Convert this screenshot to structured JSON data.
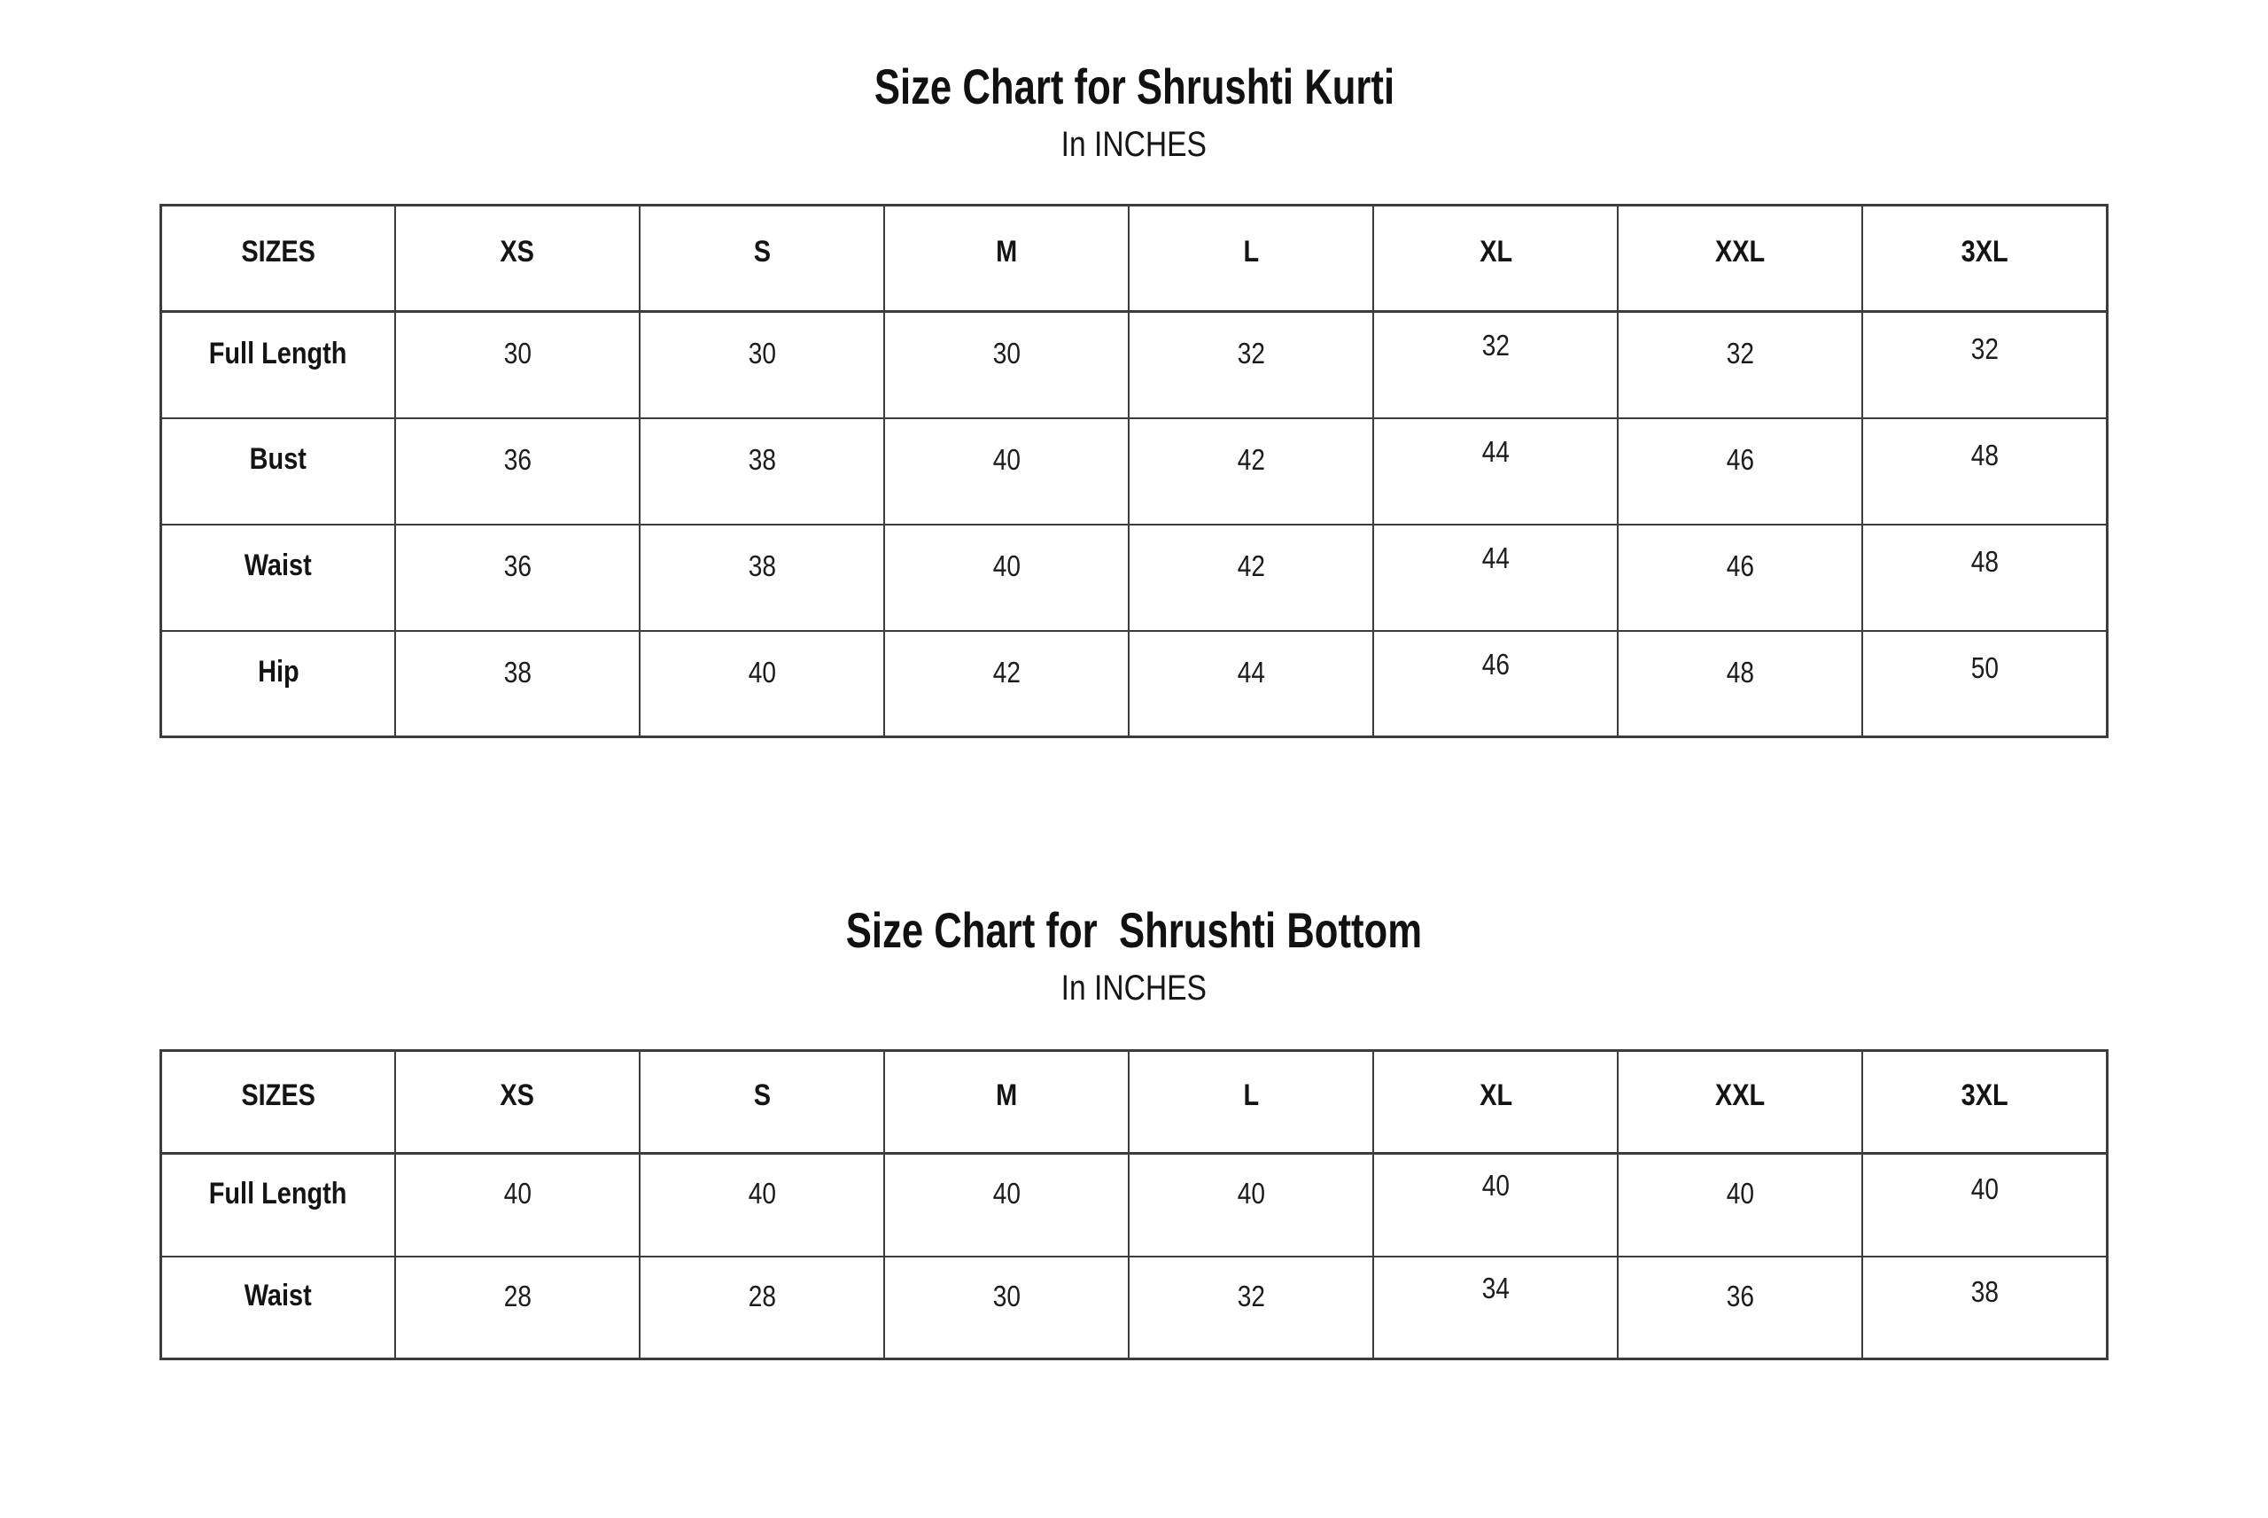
{
  "page": {
    "background_color": "#ffffff",
    "text_color": "#1f1f1f",
    "grid_line_color": "#3c3c3c"
  },
  "charts": [
    {
      "title": "Size Chart for Shrushti Kurti",
      "subtitle": "In INCHES",
      "table": {
        "columns": [
          "SIZES",
          "XS",
          "S",
          "M",
          "L",
          "XL",
          "XXL",
          "3XL"
        ],
        "rows": [
          {
            "label": "Full Length",
            "values": [
              "30",
              "30",
              "30",
              "32",
              "32",
              "32",
              "32"
            ]
          },
          {
            "label": "Bust",
            "values": [
              "36",
              "38",
              "40",
              "42",
              "44",
              "46",
              "48"
            ]
          },
          {
            "label": "Waist",
            "values": [
              "36",
              "38",
              "40",
              "42",
              "44",
              "46",
              "48"
            ]
          },
          {
            "label": "Hip",
            "values": [
              "38",
              "40",
              "42",
              "44",
              "46",
              "48",
              "50"
            ]
          }
        ]
      }
    },
    {
      "title": "Size Chart for  Shrushti Bottom",
      "subtitle": "In INCHES",
      "table": {
        "columns": [
          "SIZES",
          "XS",
          "S",
          "M",
          "L",
          "XL",
          "XXL",
          "3XL"
        ],
        "rows": [
          {
            "label": "Full Length",
            "values": [
              "40",
              "40",
              "40",
              "40",
              "40",
              "40",
              "40"
            ]
          },
          {
            "label": "Waist",
            "values": [
              "28",
              "28",
              "30",
              "32",
              "34",
              "36",
              "38"
            ]
          }
        ]
      }
    }
  ],
  "chart_data": [
    {
      "type": "table",
      "title": "Size Chart for Shrushti Kurti",
      "subtitle": "In INCHES",
      "units": "inches",
      "columns": [
        "SIZES",
        "XS",
        "S",
        "M",
        "L",
        "XL",
        "XXL",
        "3XL"
      ],
      "rows": [
        [
          "Full Length",
          30,
          30,
          30,
          32,
          32,
          32,
          32
        ],
        [
          "Bust",
          36,
          38,
          40,
          42,
          44,
          46,
          48
        ],
        [
          "Waist",
          36,
          38,
          40,
          42,
          44,
          46,
          48
        ],
        [
          "Hip",
          38,
          40,
          42,
          44,
          46,
          48,
          50
        ]
      ]
    },
    {
      "type": "table",
      "title": "Size Chart for  Shrushti Bottom",
      "subtitle": "In INCHES",
      "units": "inches",
      "columns": [
        "SIZES",
        "XS",
        "S",
        "M",
        "L",
        "XL",
        "XXL",
        "3XL"
      ],
      "rows": [
        [
          "Full Length",
          40,
          40,
          40,
          40,
          40,
          40,
          40
        ],
        [
          "Waist",
          28,
          28,
          30,
          32,
          34,
          36,
          38
        ]
      ]
    }
  ]
}
